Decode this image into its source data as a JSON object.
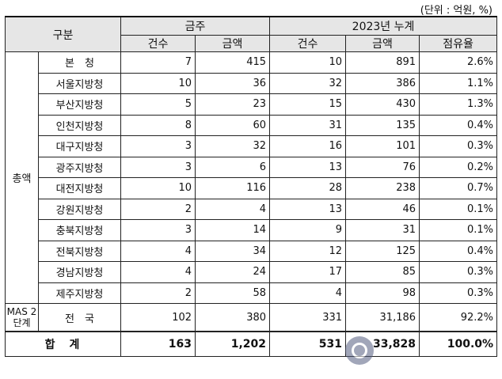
{
  "unit_note": "(단위 : 억원, %)",
  "header": {
    "category": "구분",
    "this_week": "금주",
    "cumulative": "2023년 누계",
    "count": "건수",
    "amount": "금액",
    "share": "점유율"
  },
  "group_label": "총액",
  "rows": [
    {
      "region": "본　청",
      "w_count": "7",
      "w_amount": "415",
      "c_count": "10",
      "c_amount": "891",
      "share": "2.6%"
    },
    {
      "region": "서울지방청",
      "w_count": "10",
      "w_amount": "36",
      "c_count": "32",
      "c_amount": "386",
      "share": "1.1%"
    },
    {
      "region": "부산지방청",
      "w_count": "5",
      "w_amount": "23",
      "c_count": "15",
      "c_amount": "430",
      "share": "1.3%"
    },
    {
      "region": "인천지방청",
      "w_count": "8",
      "w_amount": "60",
      "c_count": "31",
      "c_amount": "135",
      "share": "0.4%"
    },
    {
      "region": "대구지방청",
      "w_count": "3",
      "w_amount": "32",
      "c_count": "16",
      "c_amount": "101",
      "share": "0.3%"
    },
    {
      "region": "광주지방청",
      "w_count": "3",
      "w_amount": "6",
      "c_count": "13",
      "c_amount": "76",
      "share": "0.2%"
    },
    {
      "region": "대전지방청",
      "w_count": "10",
      "w_amount": "116",
      "c_count": "28",
      "c_amount": "238",
      "share": "0.7%"
    },
    {
      "region": "강원지방청",
      "w_count": "2",
      "w_amount": "4",
      "c_count": "13",
      "c_amount": "46",
      "share": "0.1%"
    },
    {
      "region": "충북지방청",
      "w_count": "3",
      "w_amount": "14",
      "c_count": "9",
      "c_amount": "31",
      "share": "0.1%"
    },
    {
      "region": "전북지방청",
      "w_count": "4",
      "w_amount": "34",
      "c_count": "12",
      "c_amount": "125",
      "share": "0.4%"
    },
    {
      "region": "경남지방청",
      "w_count": "4",
      "w_amount": "24",
      "c_count": "17",
      "c_amount": "85",
      "share": "0.3%"
    },
    {
      "region": "제주지방청",
      "w_count": "2",
      "w_amount": "58",
      "c_count": "4",
      "c_amount": "98",
      "share": "0.3%"
    }
  ],
  "mas": {
    "label": "MAS 2단계",
    "region": "전　국",
    "w_count": "102",
    "w_amount": "380",
    "c_count": "331",
    "c_amount": "31,186",
    "share": "92.2%"
  },
  "total": {
    "label": "합　계",
    "w_count": "163",
    "w_amount": "1,202",
    "c_count": "531",
    "c_amount": "33,828",
    "share": "100.0%"
  },
  "watermark_icon": "watermark-logo-icon"
}
